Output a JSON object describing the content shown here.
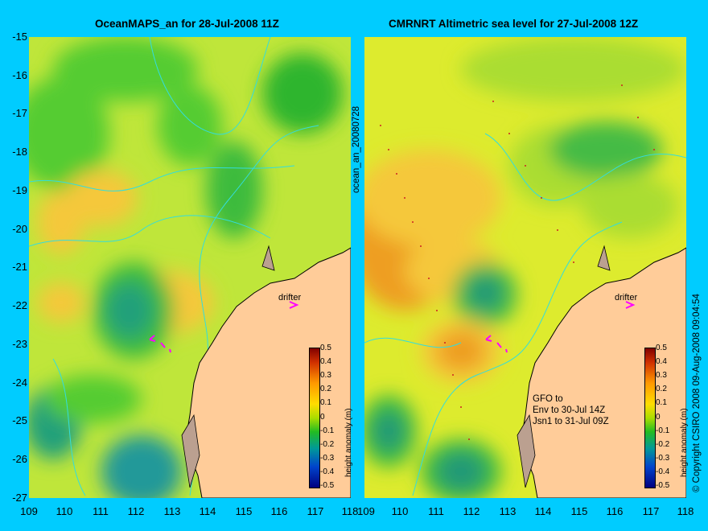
{
  "titles": {
    "left": "OceanMAPS_an for 28-Jul-2008 11Z",
    "right": "CMRNRT Altimetric sea level  for 27-Jul-2008 12Z"
  },
  "axes": {
    "x_ticks": [
      "109",
      "110",
      "111",
      "112",
      "113",
      "114",
      "115",
      "116",
      "117",
      "118"
    ],
    "y_ticks": [
      "-15",
      "-16",
      "-17",
      "-18",
      "-19",
      "-20",
      "-21",
      "-22",
      "-23",
      "-24",
      "-25",
      "-26",
      "-27"
    ]
  },
  "side_labels": {
    "run_id": "ocean_an_20080728",
    "copyright": "© Copyright CSIRO 2008  09-Aug-2008 09:04:54"
  },
  "annotations": {
    "drifter": "drifter",
    "gfo_lines": [
      "GFO to",
      "Env to 30-Jul 14Z",
      "Jsn1 to 31-Jul 09Z"
    ]
  },
  "colorbar": {
    "title": "height anomaly (m)",
    "ticks": [
      "0.5",
      "0.4",
      "0.3",
      "0.2",
      "0.1",
      "0",
      "-0.1",
      "-0.2",
      "-0.3",
      "-0.4",
      "-0.5"
    ]
  },
  "colors": {
    "background": "#00ccff",
    "land": "#ffcc99",
    "contour": "#33dddd",
    "drifter_arrow": "#ff00ff"
  }
}
